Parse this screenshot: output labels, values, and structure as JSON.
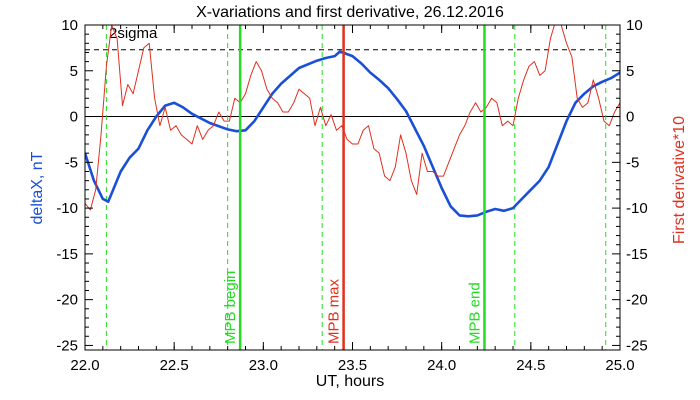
{
  "chart_data": {
    "type": "line",
    "title": "X-variations and first derivative, 26.12.2016",
    "xlabel": "UT, hours",
    "ylabel_left": "deltaX, nT",
    "ylabel_right": "First derivative*10",
    "xlim": [
      22.0,
      25.0
    ],
    "ylim": [
      -25.5,
      10
    ],
    "x_ticks": [
      22.0,
      22.5,
      23.0,
      23.5,
      24.0,
      24.5,
      25.0
    ],
    "x_tick_labels": [
      "22.0",
      "22.5",
      "23.0",
      "23.5",
      "24.0",
      "24.5",
      "25.0"
    ],
    "y_ticks": [
      -25,
      -20,
      -15,
      -10,
      -5,
      0,
      5,
      10
    ],
    "y_tick_labels": [
      "-25",
      "-20",
      "-15",
      "-10",
      "-5",
      "0",
      "5",
      "10"
    ],
    "zero_line": 0,
    "sigma_line": {
      "value": 7.3,
      "label": "2sigma"
    },
    "series": [
      {
        "name": "deltaX, nT",
        "color": "#1a4fd6",
        "x": [
          22.0,
          22.05,
          22.1,
          22.13,
          22.2,
          22.25,
          22.3,
          22.35,
          22.4,
          22.45,
          22.5,
          22.55,
          22.6,
          22.7,
          22.8,
          22.85,
          22.9,
          22.95,
          23.0,
          23.05,
          23.1,
          23.2,
          23.3,
          23.35,
          23.4,
          23.43,
          23.5,
          23.55,
          23.6,
          23.65,
          23.7,
          23.75,
          23.8,
          23.85,
          23.9,
          23.95,
          24.0,
          24.05,
          24.1,
          24.15,
          24.2,
          24.25,
          24.3,
          24.35,
          24.4,
          24.45,
          24.5,
          24.55,
          24.6,
          24.65,
          24.7,
          24.75,
          24.8,
          24.85,
          24.9,
          24.95,
          25.0
        ],
        "values": [
          -4,
          -7,
          -9,
          -9.3,
          -6,
          -4.5,
          -3.5,
          -1.5,
          0,
          1.2,
          1.5,
          1.0,
          0.3,
          -0.7,
          -1.4,
          -1.6,
          -1.5,
          -0.5,
          1.0,
          2.5,
          3.6,
          5.3,
          6.1,
          6.4,
          6.6,
          7.1,
          6.6,
          5.8,
          4.8,
          4.0,
          3.1,
          1.9,
          0.6,
          -1.3,
          -3.2,
          -5.5,
          -7.8,
          -9.8,
          -10.8,
          -10.9,
          -10.8,
          -10.4,
          -10.1,
          -10.3,
          -10.0,
          -9.0,
          -8.0,
          -7.0,
          -5.5,
          -3.0,
          -0.5,
          1.5,
          2.5,
          3.3,
          3.8,
          4.2,
          4.8
        ]
      },
      {
        "name": "First derivative*10",
        "color": "#e0301e",
        "x": [
          22.0,
          22.03,
          22.06,
          22.09,
          22.12,
          22.15,
          22.18,
          22.21,
          22.24,
          22.27,
          22.3,
          22.33,
          22.36,
          22.39,
          22.42,
          22.45,
          22.48,
          22.51,
          22.54,
          22.57,
          22.6,
          22.63,
          22.66,
          22.69,
          22.72,
          22.75,
          22.78,
          22.81,
          22.84,
          22.87,
          22.9,
          22.93,
          22.96,
          22.99,
          23.02,
          23.05,
          23.08,
          23.11,
          23.14,
          23.17,
          23.2,
          23.23,
          23.26,
          23.29,
          23.32,
          23.35,
          23.38,
          23.41,
          23.44,
          23.47,
          23.5,
          23.53,
          23.56,
          23.59,
          23.62,
          23.65,
          23.68,
          23.71,
          23.74,
          23.77,
          23.8,
          23.83,
          23.86,
          23.89,
          23.92,
          23.95,
          23.98,
          24.01,
          24.04,
          24.07,
          24.1,
          24.13,
          24.16,
          24.19,
          24.22,
          24.25,
          24.28,
          24.31,
          24.34,
          24.37,
          24.4,
          24.43,
          24.46,
          24.49,
          24.52,
          24.55,
          24.58,
          24.61,
          24.64,
          24.67,
          24.7,
          24.73,
          24.76,
          24.79,
          24.82,
          24.85,
          24.88,
          24.91,
          24.94,
          24.97,
          25.0
        ],
        "values": [
          -9.5,
          -10.2,
          -8.0,
          -2.0,
          5.5,
          10.0,
          8.5,
          1.2,
          3.5,
          2.5,
          5.0,
          7.5,
          8.0,
          2.0,
          -1.0,
          1.0,
          -1.5,
          -1.0,
          -2.0,
          -2.5,
          -3.0,
          -1.0,
          -2.5,
          -1.5,
          -1.0,
          0.5,
          -0.5,
          -0.5,
          2.0,
          1.5,
          2.5,
          4.5,
          6.0,
          5.0,
          3.0,
          2.0,
          1.5,
          0.5,
          0.5,
          1.5,
          3.0,
          2.5,
          2.0,
          -1.0,
          1.0,
          -1.0,
          0.2,
          -1.5,
          -1.0,
          -2.5,
          -3.0,
          -3.0,
          -1.5,
          -1.0,
          -3.5,
          -4.0,
          -6.5,
          -7.0,
          -5.5,
          -2.0,
          -4.0,
          -7.0,
          -8.5,
          -4.0,
          -6.0,
          -6.0,
          -6.5,
          -6.5,
          -5.0,
          -3.5,
          -2.0,
          -1.0,
          0.5,
          1.5,
          0.5,
          1.0,
          2.0,
          1.5,
          -1.0,
          -0.5,
          -1.0,
          2.0,
          4.0,
          5.5,
          6.0,
          4.5,
          5.0,
          8.5,
          10.5,
          10.0,
          8.0,
          6.5,
          2.0,
          1.0,
          1.5,
          4.0,
          2.0,
          -0.5,
          -1.0,
          0.5,
          1.5
        ]
      }
    ],
    "event_markers": [
      {
        "x": 22.87,
        "label": "MPB begin",
        "color": "#22dd22"
      },
      {
        "x": 23.45,
        "label": "MPB max",
        "color": "#e0301e"
      },
      {
        "x": 24.24,
        "label": "MPB end",
        "color": "#22dd22"
      }
    ],
    "dashed_markers": [
      22.12,
      22.8,
      23.33,
      24.41,
      24.92
    ]
  }
}
